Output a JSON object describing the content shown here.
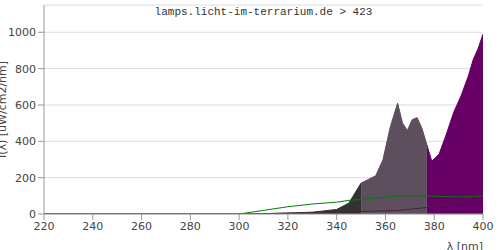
{
  "chart_data": {
    "type": "area",
    "title": "lamps.licht-im-terrarium.de > 423",
    "x_label": "λ [nm]",
    "y_label": "I(λ) [uW/cm2/nm]",
    "x": [
      220,
      240,
      260,
      280,
      300,
      310,
      320,
      330,
      340,
      345,
      350,
      353,
      356,
      359,
      362,
      365,
      367,
      369,
      371,
      373,
      375,
      377,
      379,
      382,
      385,
      388,
      391,
      394,
      396,
      398,
      400
    ],
    "series": [
      {
        "type": "area",
        "color": "#333333",
        "values": [
          0,
          0,
          0,
          0,
          0,
          2,
          5,
          10,
          25,
          60,
          170,
          null,
          null,
          null,
          null,
          null,
          null,
          null,
          null,
          null,
          null,
          null,
          null,
          null,
          null,
          null,
          null,
          null,
          null,
          null,
          null
        ]
      },
      {
        "type": "area",
        "color": "#5e4f5e",
        "values": [
          null,
          null,
          null,
          null,
          null,
          null,
          null,
          null,
          null,
          null,
          170,
          190,
          210,
          300,
          480,
          610,
          500,
          460,
          520,
          530,
          470,
          380,
          null,
          null,
          null,
          null,
          null,
          null,
          null,
          null,
          null
        ]
      },
      {
        "type": "area",
        "color": "#660066",
        "values": [
          null,
          null,
          null,
          null,
          null,
          null,
          null,
          null,
          null,
          null,
          null,
          null,
          null,
          null,
          null,
          null,
          null,
          null,
          null,
          null,
          null,
          380,
          290,
          330,
          440,
          560,
          650,
          760,
          850,
          910,
          990
        ]
      },
      {
        "type": "line",
        "color": "#008000",
        "values": [
          0,
          0,
          0,
          0,
          0,
          20,
          40,
          55,
          65,
          75,
          80,
          85,
          88,
          92,
          95,
          98,
          100,
          100,
          100,
          100,
          100,
          100,
          98,
          97,
          96,
          95,
          94,
          95,
          97,
          98,
          100
        ]
      },
      {
        "type": "line",
        "color": "#4b2040",
        "values": [
          0,
          0,
          0,
          0,
          0,
          2,
          5,
          7,
          10,
          12,
          14,
          15,
          16,
          17,
          18,
          20,
          22,
          25,
          28,
          30,
          33,
          36,
          40,
          48,
          56,
          65,
          75,
          85,
          95,
          110,
          135
        ]
      }
    ],
    "xlim": [
      220,
      400
    ],
    "xticks": [
      220,
      240,
      260,
      280,
      300,
      320,
      340,
      360,
      380,
      400
    ],
    "ylim": [
      0,
      1150
    ],
    "yticks": [
      0,
      200,
      400,
      600,
      800,
      1000
    ],
    "grid": true
  }
}
